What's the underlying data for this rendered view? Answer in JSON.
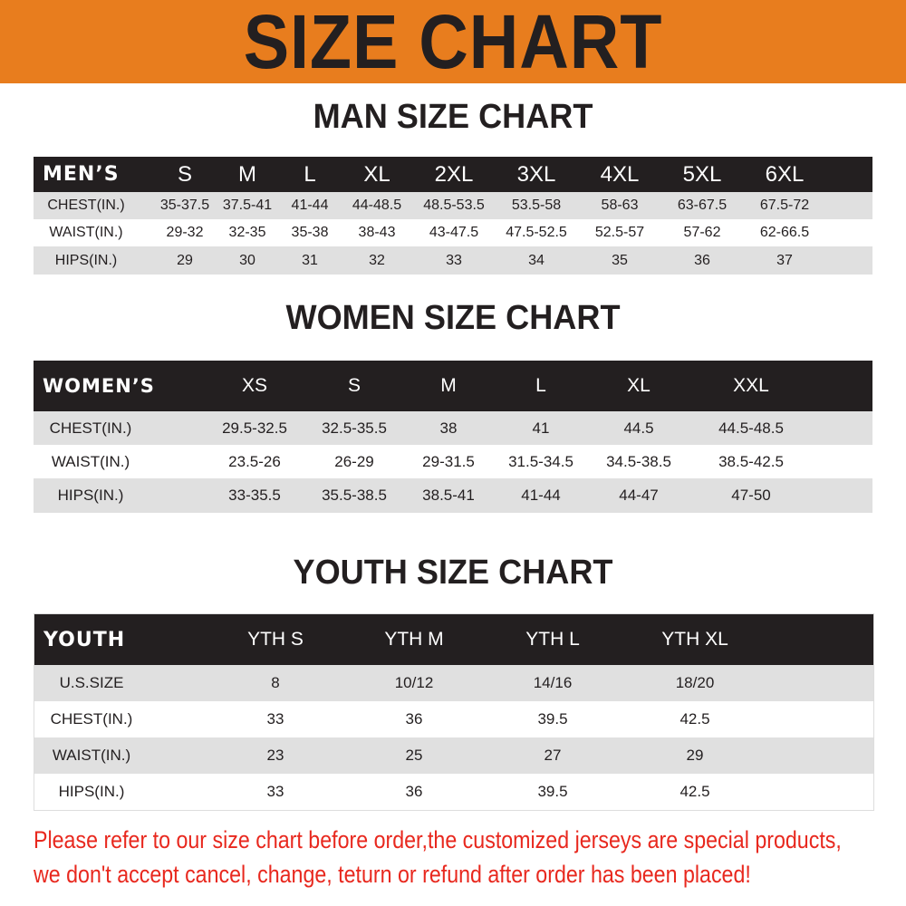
{
  "banner": {
    "title": "SIZE CHART",
    "color": "#e87d1e"
  },
  "men": {
    "title": "MAN SIZE CHART",
    "header_label": "MEN’S",
    "sizes": [
      "S",
      "M",
      "L",
      "XL",
      "2XL",
      "3XL",
      "4XL",
      "5XL",
      "6XL"
    ],
    "rows": [
      {
        "label": "CHEST(IN.)",
        "values": [
          "35-37.5",
          "37.5-41",
          "41-44",
          "44-48.5",
          "48.5-53.5",
          "53.5-58",
          "58-63",
          "63-67.5",
          "67.5-72"
        ]
      },
      {
        "label": "WAIST(IN.)",
        "values": [
          "29-32",
          "32-35",
          "35-38",
          "38-43",
          "43-47.5",
          "47.5-52.5",
          "52.5-57",
          "57-62",
          "62-66.5"
        ]
      },
      {
        "label": "HIPS(IN.)",
        "values": [
          "29",
          "30",
          "31",
          "32",
          "33",
          "34",
          "35",
          "36",
          "37"
        ]
      }
    ]
  },
  "women": {
    "title": "WOMEN SIZE CHART",
    "header_label": "WOMEN’S",
    "sizes": [
      "XS",
      "S",
      "M",
      "L",
      "XL",
      "XXL"
    ],
    "rows": [
      {
        "label": "CHEST(IN.)",
        "values": [
          "29.5-32.5",
          "32.5-35.5",
          "38",
          "41",
          "44.5",
          "44.5-48.5"
        ]
      },
      {
        "label": "WAIST(IN.)",
        "values": [
          "23.5-26",
          "26-29",
          "29-31.5",
          "31.5-34.5",
          "34.5-38.5",
          "38.5-42.5"
        ]
      },
      {
        "label": "HIPS(IN.)",
        "values": [
          "33-35.5",
          "35.5-38.5",
          "38.5-41",
          "41-44",
          "44-47",
          "47-50"
        ]
      }
    ]
  },
  "youth": {
    "title": "YOUTH SIZE CHART",
    "header_label": "YOUTH",
    "sizes": [
      "YTH S",
      "YTH M",
      "YTH L",
      "YTH XL"
    ],
    "rows": [
      {
        "label": "U.S.SIZE",
        "values": [
          "8",
          "10/12",
          "14/16",
          "18/20"
        ]
      },
      {
        "label": "CHEST(IN.)",
        "values": [
          "33",
          "36",
          "39.5",
          "42.5"
        ]
      },
      {
        "label": "WAIST(IN.)",
        "values": [
          "23",
          "25",
          "27",
          "29"
        ]
      },
      {
        "label": "HIPS(IN.)",
        "values": [
          "33",
          "36",
          "39.5",
          "42.5"
        ]
      }
    ]
  },
  "notice": {
    "line1": "Please refer to our size chart before order,the customized jerseys are special products,",
    "line2": "we don't accept cancel, change, teturn or refund after order has been placed!",
    "color": "#e8281e"
  }
}
